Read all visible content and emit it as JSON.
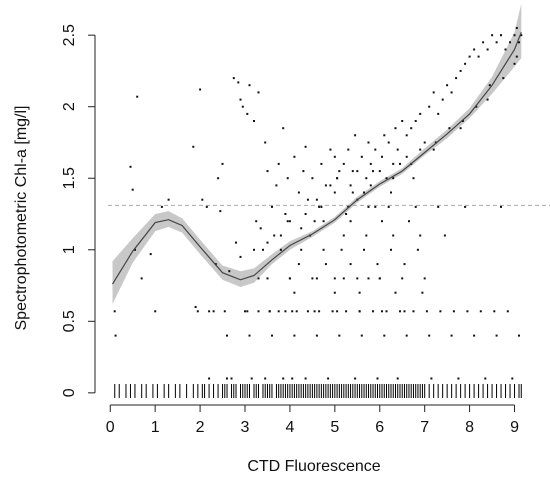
{
  "chart_data": {
    "type": "scatter",
    "xlabel": "CTD Fluorescence",
    "ylabel": "Spectrophotometric Chl-a [mg/l]",
    "xlim": [
      -0.05,
      9.3
    ],
    "ylim": [
      -0.05,
      2.62
    ],
    "x_ticks": [
      "0",
      "1",
      "2",
      "3",
      "4",
      "5",
      "6",
      "7",
      "8",
      "9"
    ],
    "y_ticks": [
      "0",
      "0.5",
      "1",
      "1.5",
      "2",
      "2.5"
    ],
    "reference_line_y": 1.31,
    "colors": {
      "points": "#111111",
      "curve": "#444444",
      "band": "#c8c8c8",
      "reference": "#aaaaaa"
    },
    "smooth_fit": {
      "x": [
        0.05,
        0.5,
        1.0,
        1.3,
        1.6,
        2.0,
        2.5,
        2.9,
        3.2,
        3.6,
        4.0,
        4.5,
        5.0,
        5.5,
        6.0,
        6.5,
        7.0,
        7.5,
        8.0,
        8.5,
        9.0,
        9.15
      ],
      "y": [
        0.76,
        0.99,
        1.19,
        1.21,
        1.17,
        1.02,
        0.84,
        0.79,
        0.82,
        0.93,
        1.03,
        1.11,
        1.21,
        1.35,
        1.46,
        1.55,
        1.68,
        1.81,
        1.95,
        2.15,
        2.4,
        2.52
      ],
      "lower": [
        0.62,
        0.91,
        1.13,
        1.16,
        1.12,
        0.97,
        0.79,
        0.74,
        0.77,
        0.9,
        1.0,
        1.09,
        1.19,
        1.33,
        1.44,
        1.53,
        1.66,
        1.78,
        1.92,
        2.09,
        2.28,
        2.34
      ],
      "upper": [
        0.92,
        1.08,
        1.25,
        1.27,
        1.22,
        1.07,
        0.89,
        0.85,
        0.87,
        0.97,
        1.06,
        1.13,
        1.23,
        1.37,
        1.48,
        1.57,
        1.71,
        1.84,
        1.99,
        2.21,
        2.52,
        2.72
      ]
    },
    "points": {
      "x": [
        0.1,
        0.12,
        0.45,
        0.5,
        0.6,
        0.55,
        0.7,
        1.0,
        1.15,
        0.9,
        1.3,
        1.85,
        2.0,
        2.05,
        2.15,
        1.9,
        2.3,
        2.4,
        2.45,
        2.5,
        2.2,
        2.6,
        2.75,
        2.85,
        2.9,
        2.95,
        3.05,
        3.1,
        3.2,
        3.3,
        3.45,
        3.5,
        3.6,
        3.7,
        3.75,
        3.85,
        3.95,
        4.0,
        4.1,
        4.2,
        4.3,
        4.35,
        4.5,
        4.6,
        4.7,
        4.8,
        4.9,
        5.0,
        5.05,
        5.1,
        5.2,
        5.3,
        5.4,
        5.45,
        5.5,
        5.6,
        5.7,
        5.75,
        5.8,
        5.9,
        6.0,
        6.05,
        6.1,
        6.2,
        6.3,
        6.35,
        6.4,
        6.5,
        6.6,
        6.7,
        6.8,
        6.9,
        7.0,
        7.1,
        7.2,
        7.3,
        7.4,
        7.5,
        7.6,
        7.7,
        7.8,
        7.9,
        8.0,
        8.1,
        8.2,
        8.3,
        8.4,
        8.5,
        8.6,
        8.7,
        8.8,
        8.9,
        9.0,
        9.05,
        9.1,
        9.15,
        3.0,
        3.3,
        3.55,
        3.75,
        3.9,
        4.15,
        4.4,
        4.65,
        4.95,
        5.25,
        5.55,
        5.85,
        6.15,
        6.45,
        6.75,
        7.05,
        7.35,
        7.65,
        7.95,
        8.25,
        8.55,
        8.85,
        3.5,
        4.0,
        4.5,
        5.0,
        5.5,
        6.0,
        6.5,
        7.0,
        4.2,
        4.8,
        5.35,
        5.95,
        6.55,
        3.4,
        3.8,
        4.25,
        4.75,
        5.15,
        5.65,
        6.25,
        6.85,
        3.65,
        4.45,
        5.2,
        5.7,
        6.3,
        6.9,
        7.45,
        3.25,
        3.95,
        4.55,
        5.35,
        6.05,
        6.65,
        2.7,
        3.15,
        3.45,
        3.85,
        4.05,
        4.35,
        4.85,
        5.45,
        5.95,
        6.4,
        7.15,
        7.75,
        8.35,
        8.95,
        2.6,
        3.1,
        3.6,
        4.1,
        4.6,
        5.1,
        5.6,
        6.1,
        6.6,
        7.1,
        7.6,
        8.1,
        8.6,
        9.1,
        4.7,
        5.3,
        5.9,
        6.2,
        6.8,
        7.3,
        7.9,
        8.7,
        4.1,
        5.0,
        5.55,
        6.35,
        6.95,
        2.8,
        3.35,
        3.9,
        4.4,
        4.9,
        5.4,
        5.8,
        6.3,
        6.7,
        7.2,
        7.8,
        8.4,
        9.0,
        1.95,
        2.2,
        2.55,
        3.3,
        4.0,
        4.6,
        5.2,
        5.75,
        6.0,
        5.05,
        5.35,
        5.65,
        5.85,
        6.15,
        6.45,
        5.5,
        5.0,
        4.65,
        4.35,
        6.6,
        6.9,
        7.25,
        7.55,
        7.85,
        8.15,
        8.45,
        8.75,
        9.05,
        3.05,
        3.55,
        4.05,
        4.55,
        5.05,
        5.55,
        6.05,
        6.55,
        2.35,
        2.65,
        2.9,
        3.2,
        3.5,
        3.8,
        4.25,
        4.75,
        5.25,
        5.75,
        6.25,
        6.75
      ],
      "y": [
        0.57,
        0.4,
        1.58,
        1.42,
        2.07,
        1.0,
        0.8,
        0.57,
        1.3,
        0.97,
        1.35,
        1.72,
        2.12,
        1.35,
        1.3,
        0.6,
        0.57,
        1.5,
        1.27,
        1.6,
        0.1,
        0.1,
        2.2,
        2.17,
        2.05,
        2.0,
        1.95,
        2.15,
        1.9,
        2.1,
        1.75,
        1.55,
        1.3,
        1.45,
        1.6,
        1.85,
        1.5,
        1.2,
        1.65,
        1.4,
        1.55,
        1.72,
        1.5,
        1.35,
        1.6,
        1.45,
        1.7,
        1.65,
        1.5,
        1.55,
        1.6,
        1.7,
        1.4,
        1.8,
        1.55,
        1.65,
        1.5,
        1.75,
        1.6,
        1.7,
        1.55,
        1.65,
        1.8,
        1.75,
        1.6,
        1.85,
        1.7,
        1.9,
        1.8,
        1.85,
        1.9,
        1.95,
        1.75,
        2.0,
        2.1,
        1.95,
        2.05,
        2.15,
        2.1,
        2.2,
        2.25,
        2.3,
        2.35,
        2.4,
        2.35,
        2.45,
        2.4,
        2.5,
        2.45,
        2.5,
        2.4,
        2.45,
        2.5,
        2.55,
        2.45,
        2.5,
        0.57,
        0.57,
        0.57,
        0.57,
        0.57,
        0.57,
        0.57,
        0.57,
        0.57,
        0.57,
        0.57,
        0.57,
        0.57,
        0.57,
        0.57,
        0.57,
        0.57,
        0.57,
        0.57,
        0.57,
        0.57,
        0.57,
        0.8,
        0.8,
        0.8,
        0.8,
        0.8,
        0.8,
        0.8,
        0.8,
        0.9,
        0.9,
        0.9,
        0.9,
        0.9,
        1.0,
        1.0,
        1.0,
        1.0,
        1.0,
        1.0,
        1.0,
        1.0,
        1.1,
        1.1,
        1.1,
        1.1,
        1.1,
        1.1,
        1.1,
        1.2,
        1.2,
        1.2,
        1.2,
        1.2,
        1.2,
        0.1,
        0.1,
        0.1,
        0.1,
        0.1,
        0.1,
        0.1,
        0.1,
        0.1,
        0.1,
        0.1,
        0.1,
        0.1,
        0.1,
        0.4,
        0.4,
        0.4,
        0.4,
        0.4,
        0.4,
        0.4,
        0.4,
        0.4,
        0.4,
        0.4,
        0.4,
        0.4,
        0.4,
        1.3,
        1.3,
        1.3,
        1.3,
        1.3,
        1.3,
        1.3,
        1.3,
        0.7,
        0.7,
        0.7,
        0.7,
        0.7,
        1.05,
        1.15,
        1.25,
        1.35,
        1.45,
        1.55,
        1.45,
        1.5,
        1.6,
        1.7,
        1.85,
        2.05,
        2.3,
        0.57,
        0.57,
        0.57,
        0.8,
        0.8,
        0.8,
        0.8,
        0.8,
        0.8,
        1.5,
        1.45,
        1.4,
        1.55,
        1.5,
        1.6,
        1.35,
        1.4,
        1.3,
        1.25,
        1.65,
        1.7,
        1.75,
        1.85,
        1.9,
        2.0,
        2.15,
        2.2,
        2.35,
        0.57,
        0.57,
        0.57,
        0.57,
        0.57,
        0.57,
        0.57,
        0.57,
        0.9,
        0.85,
        0.95,
        1.0,
        1.05,
        1.1,
        1.15,
        1.2,
        1.25,
        1.3,
        1.4,
        1.5
      ]
    },
    "rug_x": [
      0.1,
      0.2,
      0.35,
      0.45,
      0.55,
      0.7,
      0.8,
      0.95,
      1.05,
      1.2,
      1.3,
      1.45,
      1.55,
      1.7,
      1.85,
      1.95,
      2.05,
      2.1,
      2.2,
      2.3,
      2.4,
      2.5,
      2.55,
      2.6,
      2.7,
      2.75,
      2.8,
      2.9,
      2.95,
      3.0,
      3.05,
      3.1,
      3.2,
      3.25,
      3.3,
      3.4,
      3.45,
      3.5,
      3.55,
      3.6,
      3.7,
      3.75,
      3.8,
      3.85,
      3.9,
      3.95,
      4.0,
      4.05,
      4.1,
      4.15,
      4.2,
      4.25,
      4.3,
      4.35,
      4.4,
      4.45,
      4.5,
      4.55,
      4.6,
      4.65,
      4.7,
      4.75,
      4.8,
      4.85,
      4.9,
      4.95,
      5.0,
      5.05,
      5.1,
      5.15,
      5.2,
      5.25,
      5.3,
      5.35,
      5.4,
      5.45,
      5.5,
      5.55,
      5.6,
      5.65,
      5.7,
      5.75,
      5.8,
      5.85,
      5.9,
      5.95,
      6.0,
      6.05,
      6.1,
      6.15,
      6.2,
      6.25,
      6.3,
      6.35,
      6.4,
      6.45,
      6.5,
      6.55,
      6.6,
      6.65,
      6.7,
      6.75,
      6.8,
      6.85,
      6.9,
      6.95,
      7.0,
      7.1,
      7.2,
      7.3,
      7.4,
      7.5,
      7.6,
      7.7,
      7.8,
      7.9,
      8.0,
      8.1,
      8.2,
      8.3,
      8.4,
      8.5,
      8.6,
      8.7,
      8.8,
      8.9,
      9.0,
      9.1,
      9.15
    ]
  }
}
